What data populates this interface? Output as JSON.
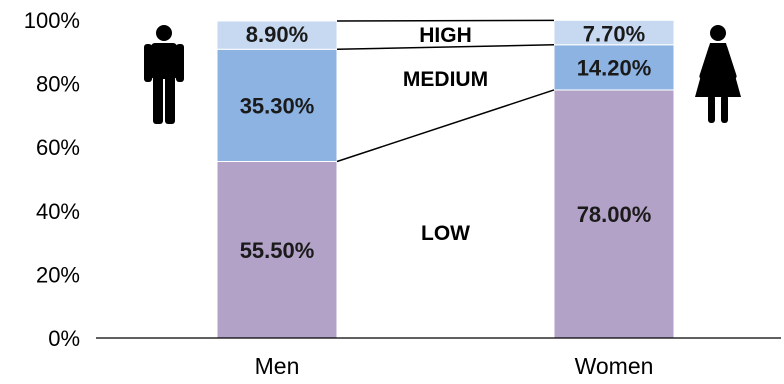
{
  "chart_data": {
    "type": "bar",
    "stacked": true,
    "categories": [
      "Men",
      "Women"
    ],
    "series": [
      {
        "name": "LOW",
        "values": [
          55.5,
          78.0
        ],
        "labels": [
          "55.50%",
          "78.00%"
        ],
        "color": "#b3a2c7"
      },
      {
        "name": "MEDIUM",
        "values": [
          35.3,
          14.2
        ],
        "labels": [
          "35.30%",
          "14.20%"
        ],
        "color": "#8db3e2"
      },
      {
        "name": "HIGH",
        "values": [
          8.9,
          7.7
        ],
        "labels": [
          "8.90%",
          "7.70%"
        ],
        "color": "#c6d9f1"
      }
    ],
    "ylim": [
      0,
      100
    ],
    "yticks": [
      0,
      20,
      40,
      60,
      80,
      100
    ],
    "ytick_labels": [
      "0%",
      "20%",
      "40%",
      "60%",
      "80%",
      "100%"
    ],
    "icons": [
      "man-icon",
      "woman-icon"
    ],
    "grid": false,
    "legend": "none"
  }
}
